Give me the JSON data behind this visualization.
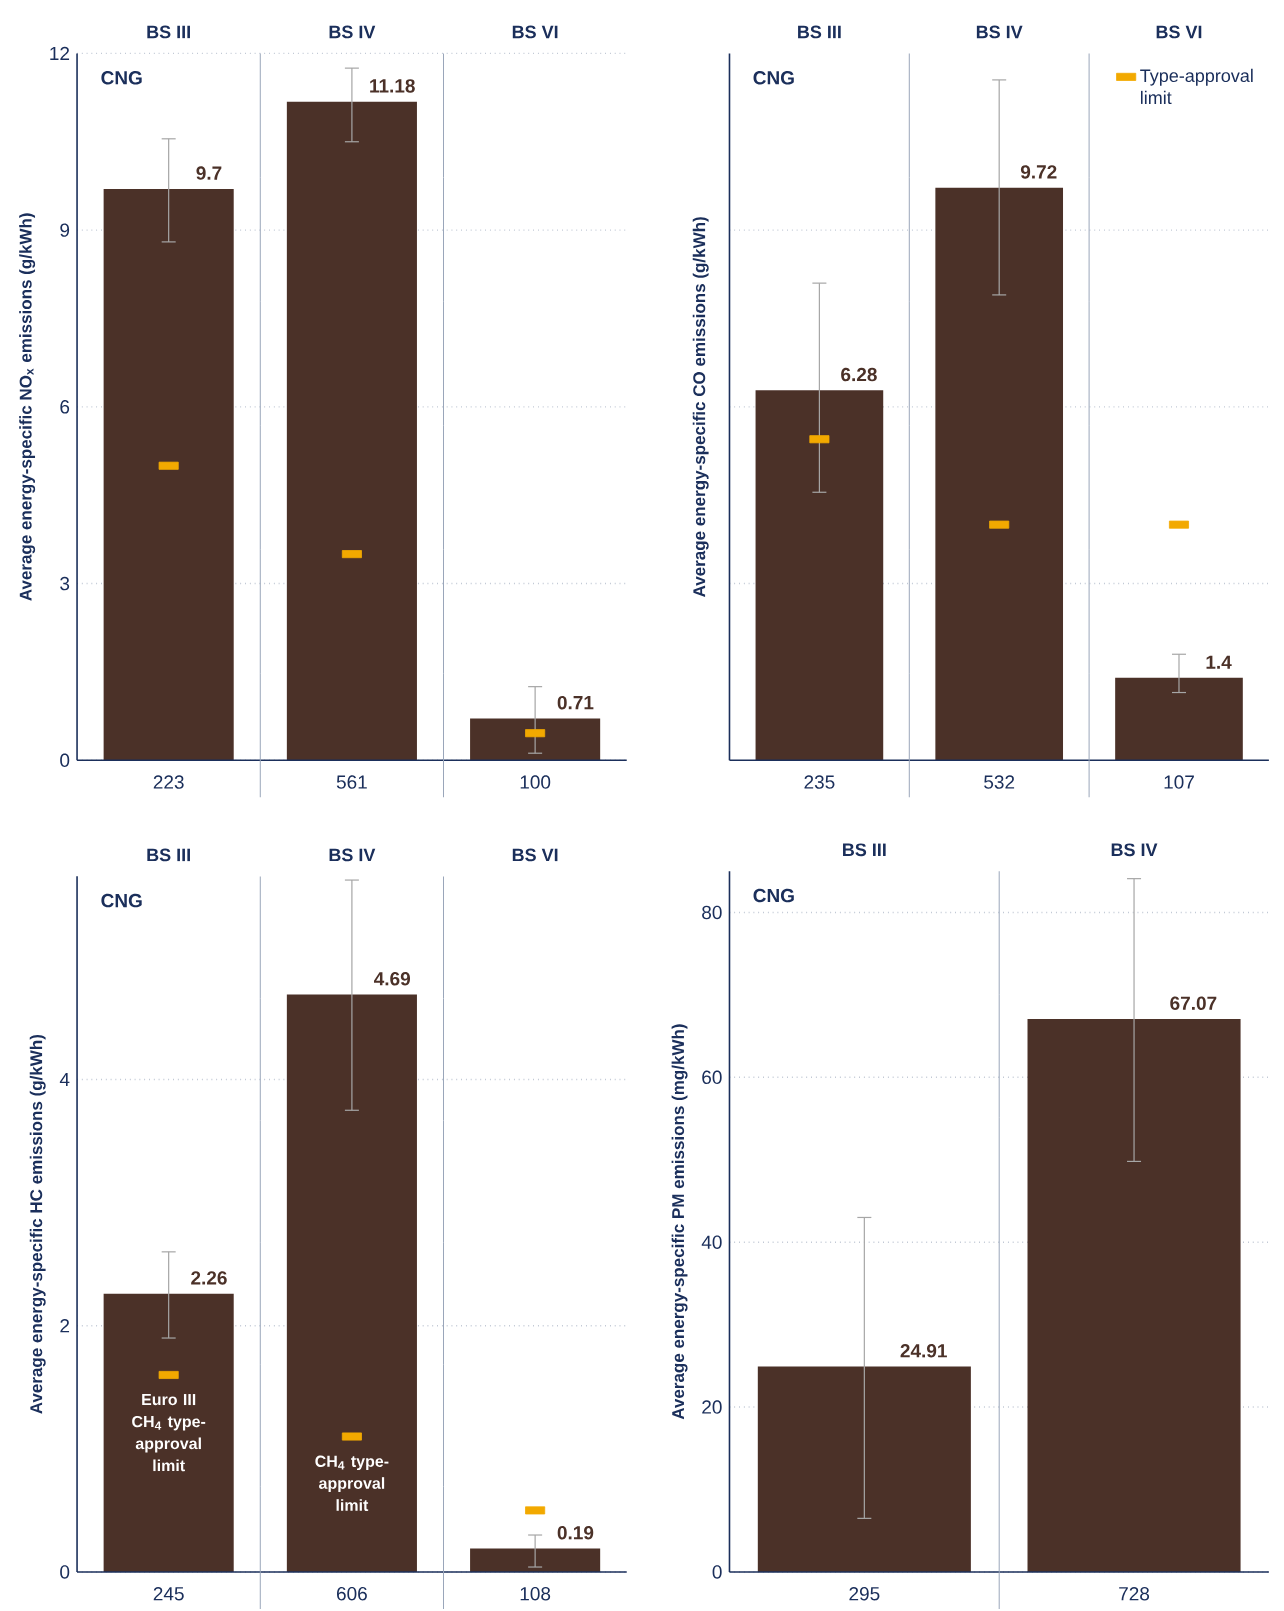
{
  "chart_data": [
    {
      "type": "bar",
      "categories": [
        "BS III",
        "BS IV",
        "BS VI"
      ],
      "ylabel": "Average energy-specific NO$_{x}$ emissions (g/kWh)",
      "ylim": [
        0,
        12
      ],
      "yticks": [
        0,
        3,
        6,
        9,
        12
      ],
      "grid": "y",
      "annotations": [
        "CNG",
        "223",
        "561",
        "100"
      ],
      "series": [
        {
          "color": "#4b3128",
          "values": [
            9.7,
            11.18,
            0.71
          ],
          "value_labels": [
            "9.7",
            "11.18",
            "0.71"
          ],
          "errors": [
            [
              8.8,
              10.55
            ],
            [
              10.5,
              11.75
            ],
            [
              0.12,
              1.25
            ]
          ]
        },
        {
          "type": "scatter",
          "color": "#f2a900",
          "marker": "square",
          "x": [
            "BS III",
            "BS IV",
            "BS VI"
          ],
          "values": [
            5.0,
            3.5,
            0.46
          ]
        }
      ]
    },
    {
      "type": "bar",
      "categories": [
        "BS III",
        "BS IV",
        "BS VI"
      ],
      "ylabel": "Average energy-specific CO emissions (g/kWh)",
      "ylim": [
        0,
        12
      ],
      "yticks": [
        {
          "value": 3,
          "label": null
        },
        {
          "value": 6,
          "label": null
        },
        {
          "value": 9,
          "label": null
        }
      ],
      "grid": "y",
      "tick_labels": "x",
      "legend": "top right",
      "annotations": [
        "CNG",
        "235",
        "532",
        "107"
      ],
      "series": [
        {
          "color": "#4b3128",
          "values": [
            6.28,
            9.72,
            1.4
          ],
          "value_labels": [
            "6.28",
            "9.72",
            "1.4"
          ],
          "errors": [
            [
              4.55,
              8.1
            ],
            [
              7.9,
              11.55
            ],
            [
              1.15,
              1.8
            ]
          ]
        },
        {
          "type": "scatter",
          "name": "Type-approval limit",
          "color": "#f2a900",
          "marker": "square",
          "x": [
            "BS III",
            "BS IV",
            "BS VI"
          ],
          "values": [
            5.45,
            4.0,
            4.0
          ]
        }
      ]
    },
    {
      "type": "bar",
      "categories": [
        "BS III",
        "BS IV",
        "BS VI"
      ],
      "ylabel": "Average energy-specific HC emissions (g/kWh)",
      "ylim": [
        0,
        5.65
      ],
      "yticks": [
        0,
        2,
        4
      ],
      "grid": "y",
      "annotations": [
        "CNG",
        "245",
        "606",
        "108",
        {
          "text": "Euro III CH$_{4}$ type-approval limit",
          "x": "BS III",
          "y": 1.6
        },
        {
          "text": "CH$_{4}$ type-approval limit",
          "x": "BS IV",
          "y": 1.1
        }
      ],
      "series": [
        {
          "color": "#4b3128",
          "values": [
            2.26,
            4.69,
            0.19
          ],
          "value_labels": [
            "2.26",
            "4.69",
            "0.19"
          ],
          "errors": [
            [
              1.9,
              2.6
            ],
            [
              3.75,
              5.62
            ],
            [
              0.04,
              0.3
            ]
          ]
        },
        {
          "type": "scatter",
          "color": "#f2a900",
          "marker": "square",
          "x": [
            "BS III",
            "BS IV",
            "BS VI"
          ],
          "values": [
            1.6,
            1.1,
            0.5
          ]
        }
      ]
    },
    {
      "type": "bar",
      "categories": [
        "BS III",
        "BS IV"
      ],
      "ylabel": "Average energy-specific PM emissions (mg/kWh)",
      "ylim": [
        0,
        85
      ],
      "yticks": [
        0,
        20,
        40,
        60,
        80
      ],
      "grid": "y",
      "annotations": [
        "CNG",
        "295",
        "728"
      ],
      "series": [
        {
          "color": "#4b3128",
          "values": [
            24.91,
            67.07
          ],
          "value_labels": [
            "24.91",
            "67.07"
          ],
          "errors": [
            [
              6.5,
              43.0
            ],
            [
              49.8,
              84.1
            ]
          ]
        }
      ]
    }
  ]
}
